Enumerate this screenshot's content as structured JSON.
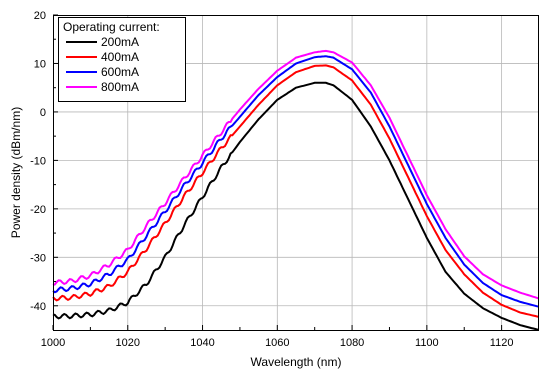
{
  "chart_data": {
    "type": "line",
    "xlabel": "Wavelength (nm)",
    "ylabel": "Power density (dBm/nm)",
    "xlim": [
      1000,
      1130
    ],
    "ylim": [
      -45,
      20
    ],
    "xticks": [
      "1000",
      "1020",
      "1040",
      "1060",
      "1080",
      "1100",
      "1120"
    ],
    "yticks": [
      "20",
      "10",
      "0",
      "-10",
      "-20",
      "-30",
      "-40"
    ],
    "grid": true,
    "legend": {
      "title": "Operating current:",
      "placement": "top-left"
    },
    "x": [
      1000,
      1005,
      1010,
      1015,
      1020,
      1025,
      1030,
      1035,
      1040,
      1045,
      1050,
      1055,
      1060,
      1065,
      1070,
      1073,
      1075,
      1080,
      1085,
      1090,
      1095,
      1100,
      1105,
      1110,
      1115,
      1120,
      1125,
      1130
    ],
    "series": [
      {
        "name": "200mA",
        "color": "#000000",
        "values": [
          -42.2,
          -42.1,
          -41.8,
          -41,
          -39.3,
          -35.5,
          -30,
          -23.5,
          -17.5,
          -11.5,
          -6.2,
          -1.5,
          2.5,
          5,
          6,
          6,
          5.5,
          2.5,
          -3,
          -10,
          -18,
          -26,
          -33,
          -37.5,
          -40.5,
          -42.5,
          -44,
          -45
        ]
      },
      {
        "name": "400mA",
        "color": "#ff0000",
        "values": [
          -38.5,
          -38.3,
          -37.5,
          -36,
          -33,
          -28.2,
          -23,
          -17.5,
          -12.5,
          -7.5,
          -3,
          1.5,
          5.5,
          8.2,
          9.5,
          9.6,
          9.2,
          6.5,
          1.5,
          -5.5,
          -13.5,
          -21.5,
          -28.5,
          -33.5,
          -37.3,
          -39.8,
          -41.4,
          -42.3
        ]
      },
      {
        "name": "600mA",
        "color": "#0000ff",
        "values": [
          -36.8,
          -36.4,
          -35.5,
          -33.5,
          -30.5,
          -25.5,
          -20.5,
          -15.3,
          -10.5,
          -5.5,
          -1,
          3.5,
          7.2,
          10,
          11.3,
          11.5,
          11.2,
          8.8,
          4,
          -3,
          -11,
          -19,
          -26,
          -31.5,
          -35.3,
          -37.8,
          -39.2,
          -40.2
        ]
      },
      {
        "name": "800mA",
        "color": "#ff00ff",
        "values": [
          -35.3,
          -34.9,
          -33.8,
          -31.5,
          -28.5,
          -23.5,
          -18.8,
          -13.8,
          -9,
          -4.2,
          0.5,
          4.8,
          8.5,
          11.2,
          12.3,
          12.6,
          12.3,
          10.2,
          5.5,
          -1.2,
          -9.2,
          -17.2,
          -24.2,
          -29.8,
          -33.5,
          -35.8,
          -37.3,
          -38.5
        ]
      }
    ]
  }
}
